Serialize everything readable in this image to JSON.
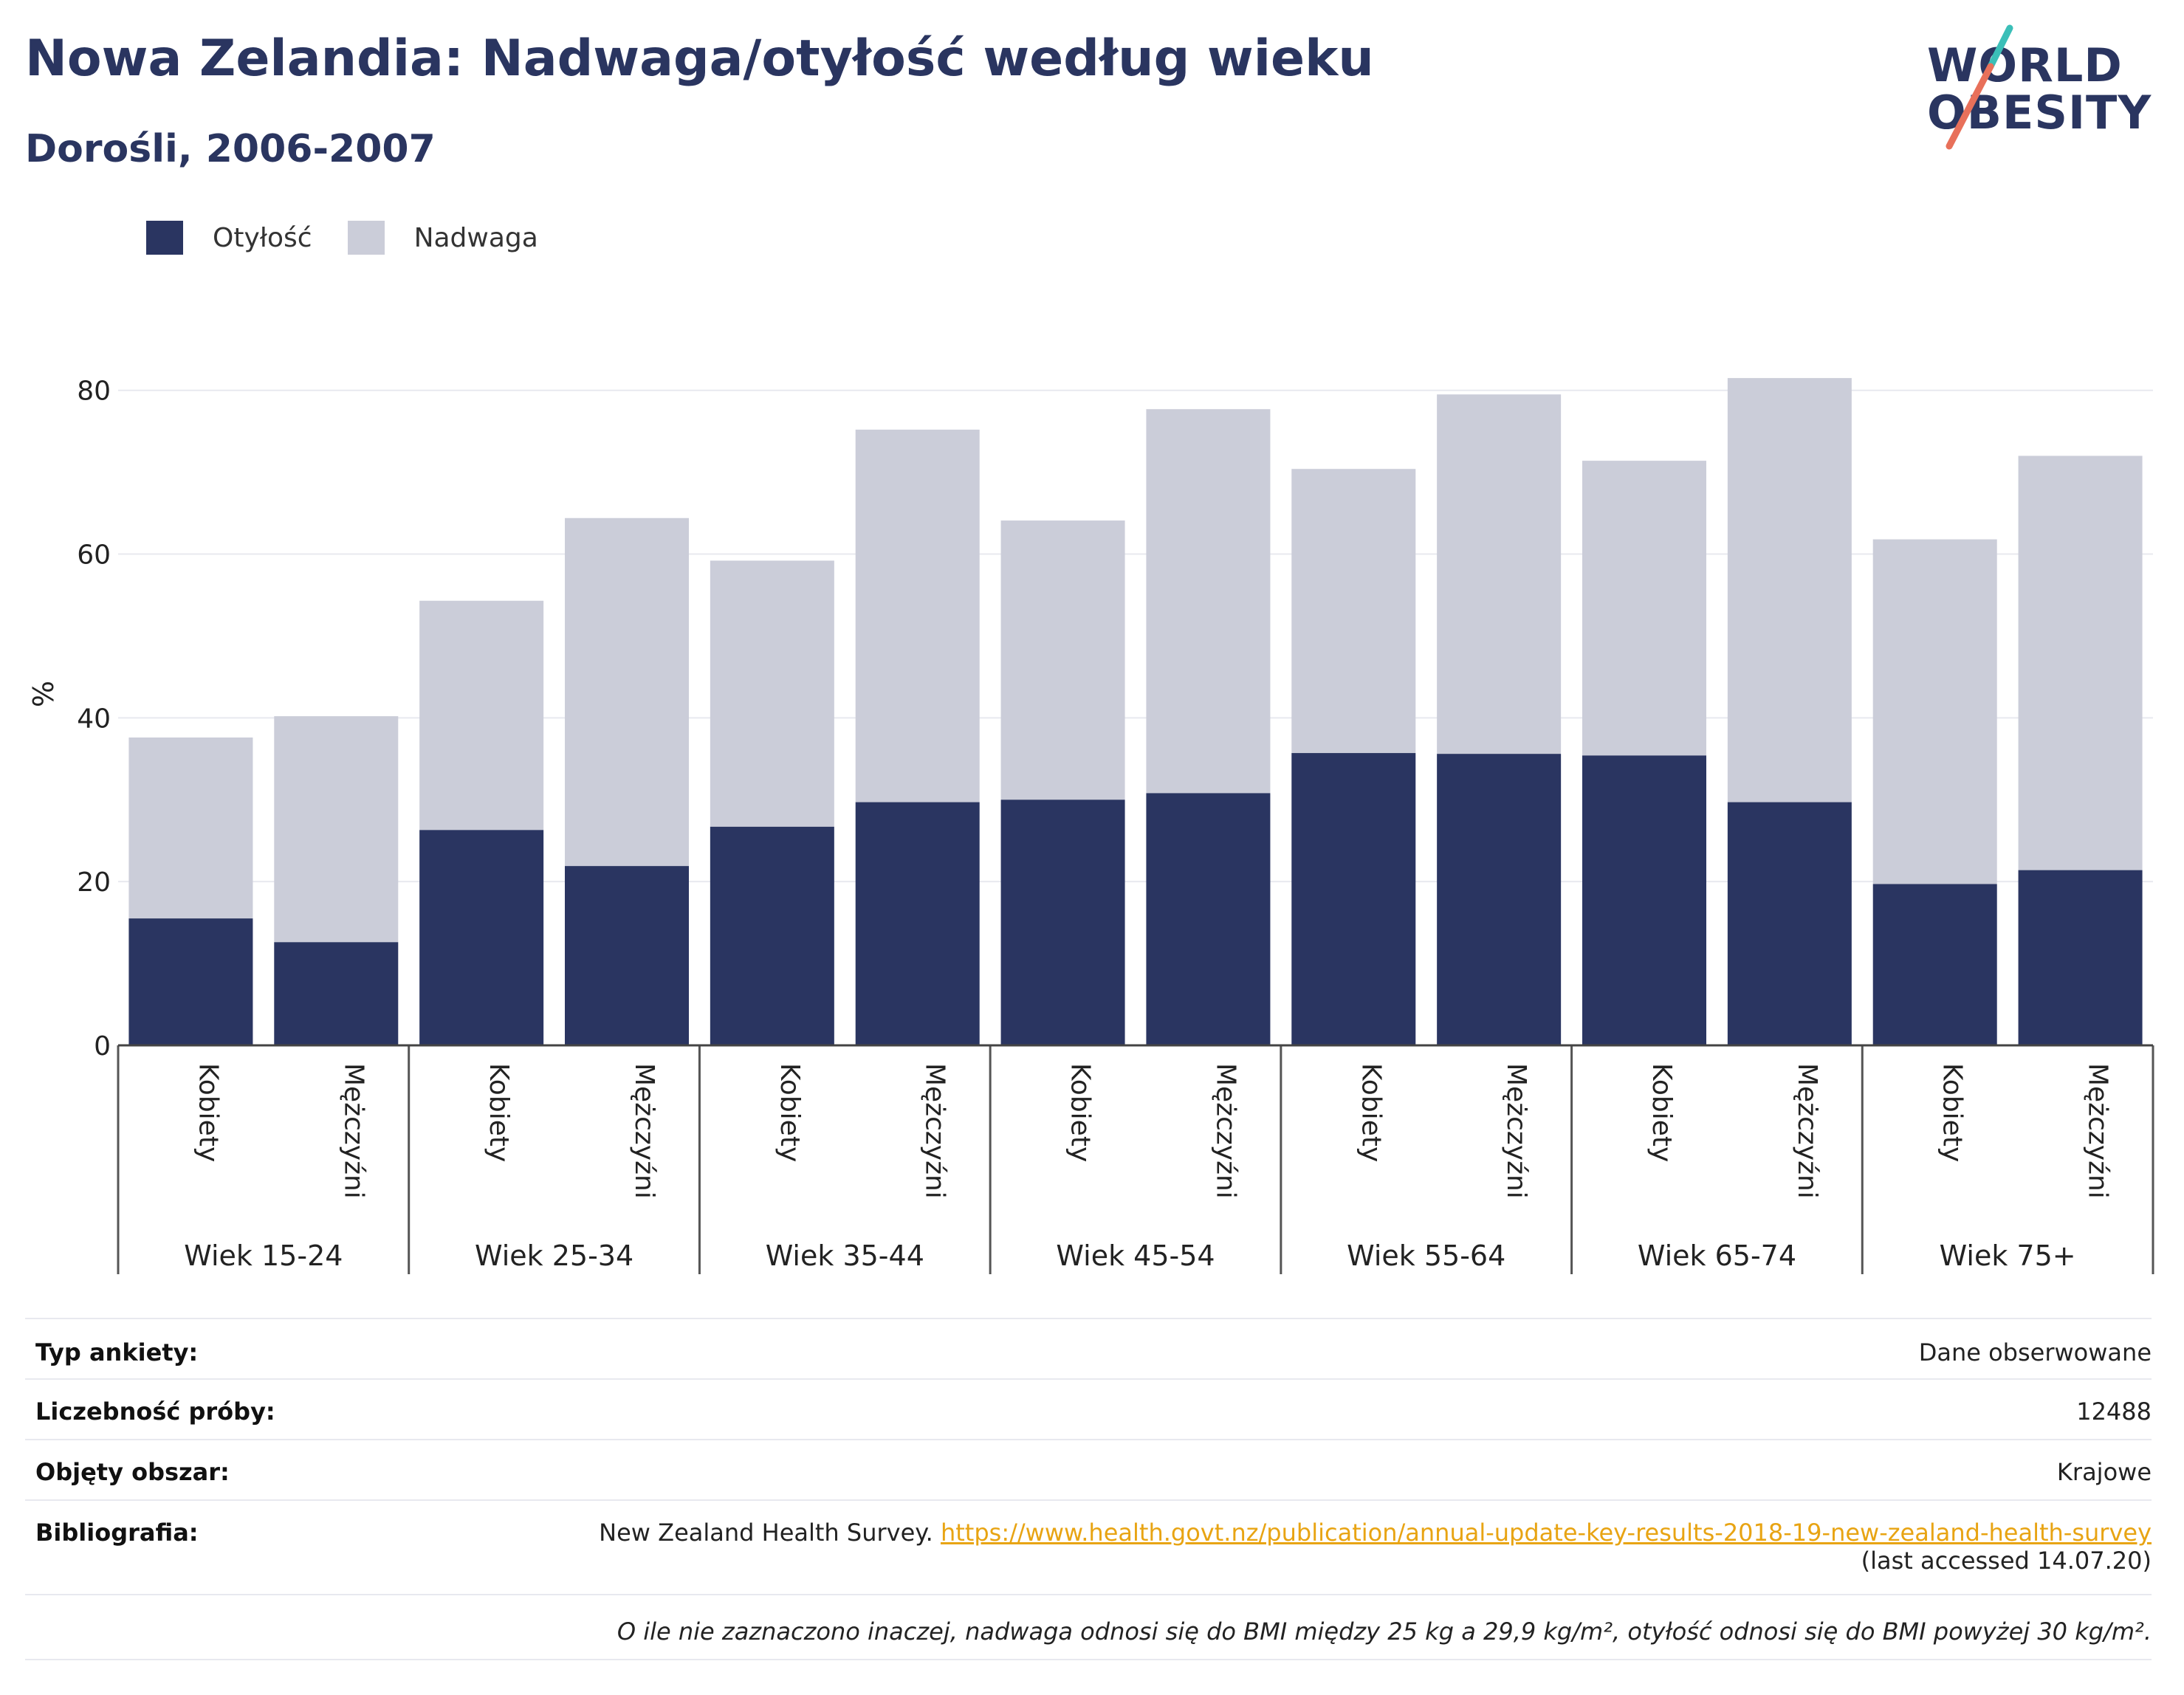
{
  "header": {
    "title": "Nowa Zelandia: Nadwaga/otyłość według wieku",
    "subtitle": "Dorośli, 2006-2007"
  },
  "logo": {
    "line1": "WORLD",
    "line2": "OBESITY",
    "colors": {
      "text": "#2a3560",
      "slash_top": "#3bbfb8",
      "slash_bottom": "#e8705a"
    }
  },
  "legend": {
    "items": [
      {
        "label": "Otyłość",
        "color": "#2a3561"
      },
      {
        "label": "Nadwaga",
        "color": "#cbcdd9"
      }
    ]
  },
  "chart_data": {
    "type": "bar",
    "stacked": true,
    "ylabel": "%",
    "ylim": [
      0,
      88
    ],
    "yticks": [
      0,
      20,
      40,
      60,
      80
    ],
    "grid": true,
    "legend_position": "top-left",
    "groups": [
      "Wiek 15-24",
      "Wiek 25-34",
      "Wiek 35-44",
      "Wiek 45-54",
      "Wiek 55-64",
      "Wiek 65-74",
      "Wiek 75+"
    ],
    "sub_categories": [
      "Kobiety",
      "Mężczyźni"
    ],
    "series": [
      {
        "name": "Otyłość",
        "color": "#2a3561",
        "values": [
          15.5,
          12.6,
          26.3,
          21.9,
          26.7,
          29.7,
          30.0,
          30.8,
          35.7,
          35.6,
          35.4,
          29.7,
          19.7,
          21.4
        ]
      },
      {
        "name": "Nadwaga",
        "color": "#cbcdd9",
        "values": [
          22.1,
          27.6,
          28.0,
          42.5,
          32.5,
          45.5,
          34.1,
          46.9,
          34.7,
          43.9,
          36.0,
          51.8,
          42.1,
          50.6
        ]
      }
    ]
  },
  "info_table": {
    "survey_type_label": "Typ ankiety:",
    "survey_type_value": "Dane obserwowane",
    "sample_size_label": "Liczebność próby:",
    "sample_size_value": "12488",
    "area_label": "Objęty obszar:",
    "area_value": "Krajowe",
    "bibliography_label": "Bibliografia:",
    "bibliography_prefix": "New Zealand Health Survey.",
    "bibliography_link": "https://www.health.govt.nz/publication/annual-update-key-results-2018-19-new-zealand-health-survey",
    "bibliography_accessed": "(last accessed 14.07.20)",
    "note": "O ile nie zaznaczono inaczej, nadwaga odnosi się do BMI między 25 kg a 29,9 kg/m², otyłość odnosi się do BMI powyżej 30 kg/m²."
  }
}
